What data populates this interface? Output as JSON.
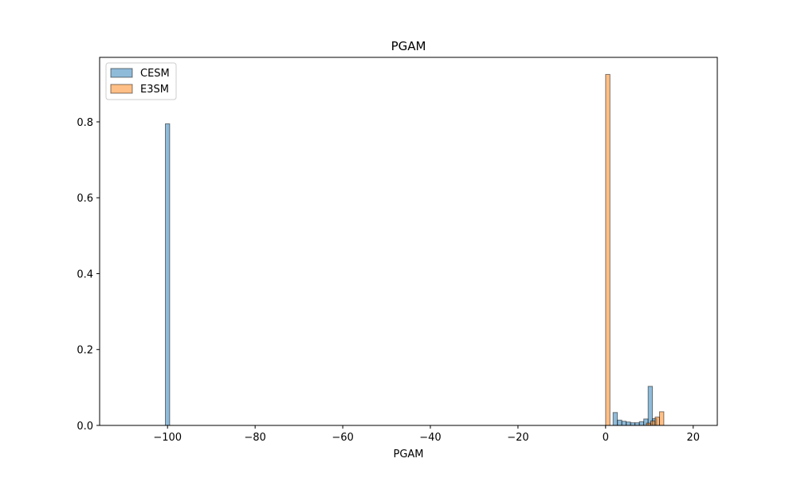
{
  "chart_data": {
    "type": "bar",
    "title": "PGAM",
    "xlabel": "PGAM",
    "ylabel": "",
    "xlim": [
      -115.5,
      25.5
    ],
    "ylim": [
      0,
      0.97
    ],
    "xticks": [
      -100,
      -80,
      -60,
      -40,
      -20,
      0,
      20
    ],
    "yticks": [
      0.0,
      0.2,
      0.4,
      0.6,
      0.8
    ],
    "ytick_format": 1,
    "grid": false,
    "legend_position": "top-left",
    "bin_width": 0.98,
    "series": [
      {
        "name": "CESM",
        "color": "#1f77b4",
        "opacity": 0.5,
        "baseline_x": [
          -110,
          19
        ],
        "bins": [
          {
            "x": -100.0,
            "value": 0.795
          },
          {
            "x": 2.2,
            "value": 0.034
          },
          {
            "x": 3.2,
            "value": 0.014
          },
          {
            "x": 4.2,
            "value": 0.011
          },
          {
            "x": 5.2,
            "value": 0.009
          },
          {
            "x": 6.2,
            "value": 0.007
          },
          {
            "x": 7.2,
            "value": 0.007
          },
          {
            "x": 8.2,
            "value": 0.01
          },
          {
            "x": 9.2,
            "value": 0.017
          },
          {
            "x": 10.2,
            "value": 0.103
          },
          {
            "x": 11.2,
            "value": 0.018
          }
        ]
      },
      {
        "name": "E3SM",
        "color": "#ff7f0e",
        "opacity": 0.5,
        "baseline_x": [
          0,
          19
        ],
        "bins": [
          {
            "x": 0.5,
            "value": 0.925
          },
          {
            "x": 9.8,
            "value": 0.006
          },
          {
            "x": 10.8,
            "value": 0.012
          },
          {
            "x": 11.8,
            "value": 0.022
          },
          {
            "x": 12.8,
            "value": 0.036
          }
        ]
      }
    ]
  }
}
